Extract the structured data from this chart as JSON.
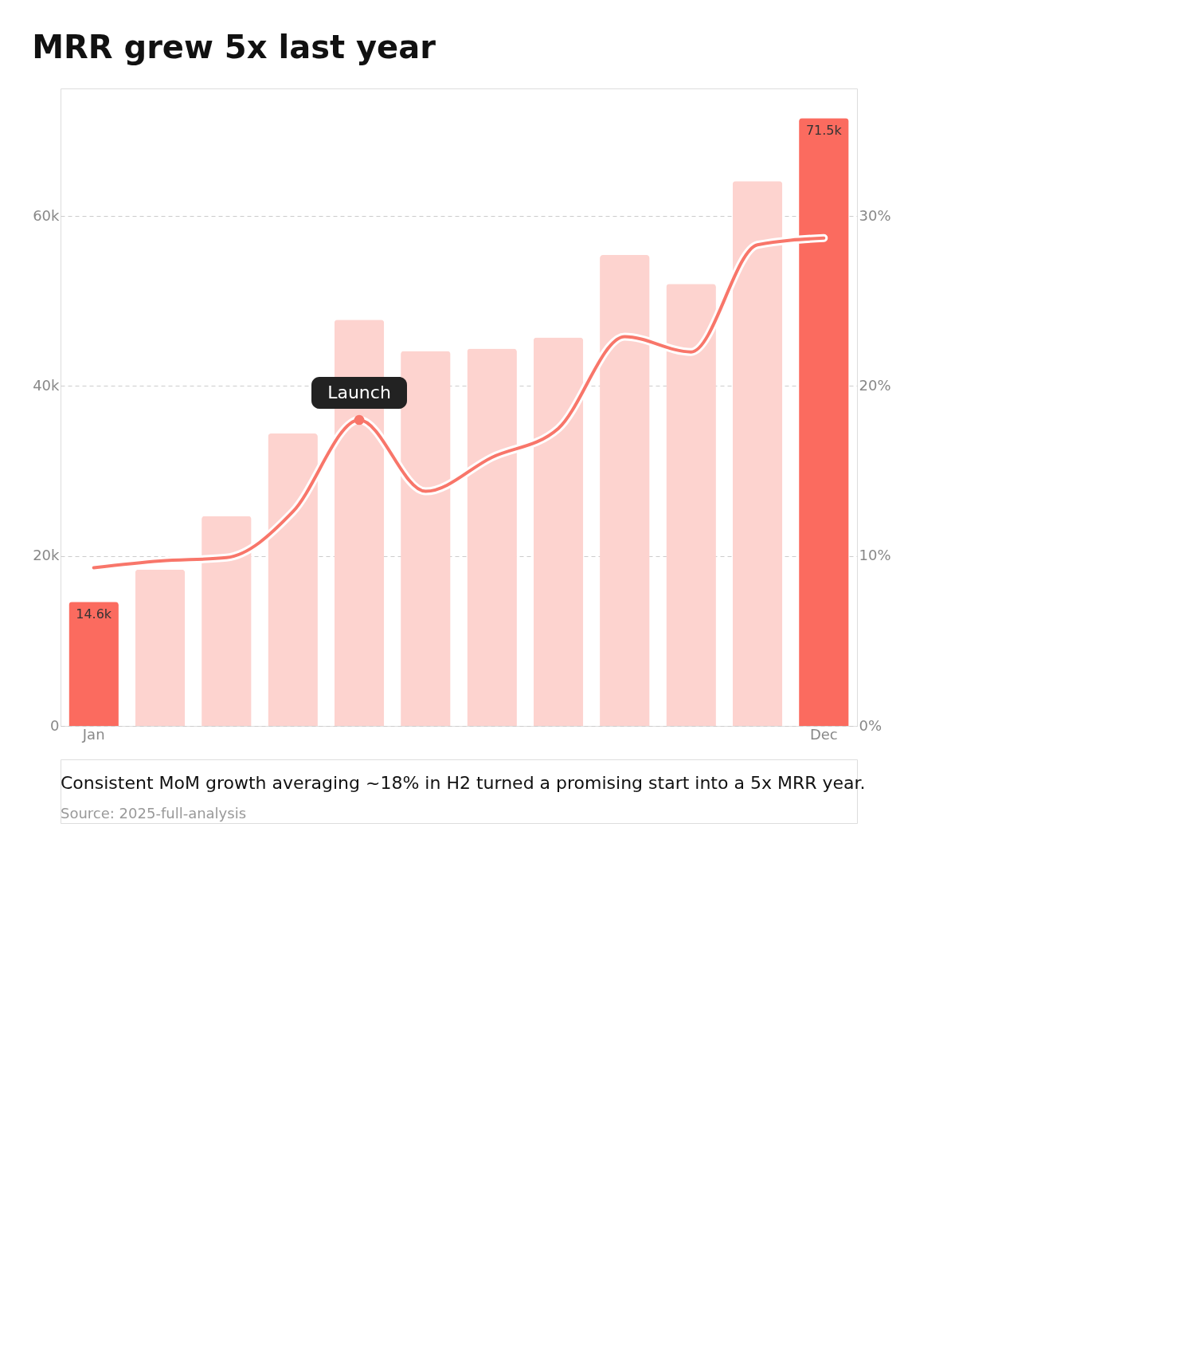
{
  "chart_data": {
    "type": "bar",
    "title": "MRR grew 5x last year",
    "categories": [
      "Jan",
      null,
      null,
      null,
      null,
      null,
      null,
      null,
      null,
      null,
      null,
      "Dec"
    ],
    "series": [
      {
        "colors": [
          "#fb6b5f",
          "#fdd3cf",
          "#fdd3cf",
          "#fdd3cf",
          "#fdd3cf",
          "#fdd3cf",
          "#fdd3cf",
          "#fdd3cf",
          "#fdd3cf",
          "#fdd3cf",
          "#fdd3cf",
          "#fb6b5f"
        ],
        "values": [
          14600,
          18400,
          24700,
          34400,
          47800,
          44100,
          44400,
          45700,
          55400,
          52000,
          64100,
          71500
        ],
        "value_labels": [
          "14.6k",
          null,
          null,
          null,
          null,
          null,
          null,
          null,
          null,
          null,
          null,
          "71.5k"
        ]
      },
      {
        "type": "line",
        "axis": "y2",
        "color": "#f8766a",
        "values": [
          9.3,
          9.7,
          9.9,
          12.6,
          18.0,
          13.8,
          15.8,
          17.5,
          22.9,
          22.0,
          28.3,
          28.7
        ]
      }
    ],
    "ylim": [
      0,
      75000
    ],
    "yticks": [
      0,
      {
        "value": 20000,
        "label": "20k"
      },
      {
        "value": 40000,
        "label": "40k"
      },
      {
        "value": 60000,
        "label": "60k"
      }
    ],
    "y2lim": [
      0,
      37.5
    ],
    "y2ticks": [
      {
        "value": 0,
        "label": "0%"
      },
      {
        "value": 10,
        "label": "10%"
      },
      {
        "value": 20,
        "label": "20%"
      },
      {
        "value": 30,
        "label": "30%"
      }
    ],
    "grid": "y",
    "line_style": "solid",
    "annotations": [
      "Launch",
      "Consistent MoM growth averaging ~18% in H2 turned a promising start into a 5x MRR year.",
      "Source: 2025-full-analysis"
    ]
  }
}
